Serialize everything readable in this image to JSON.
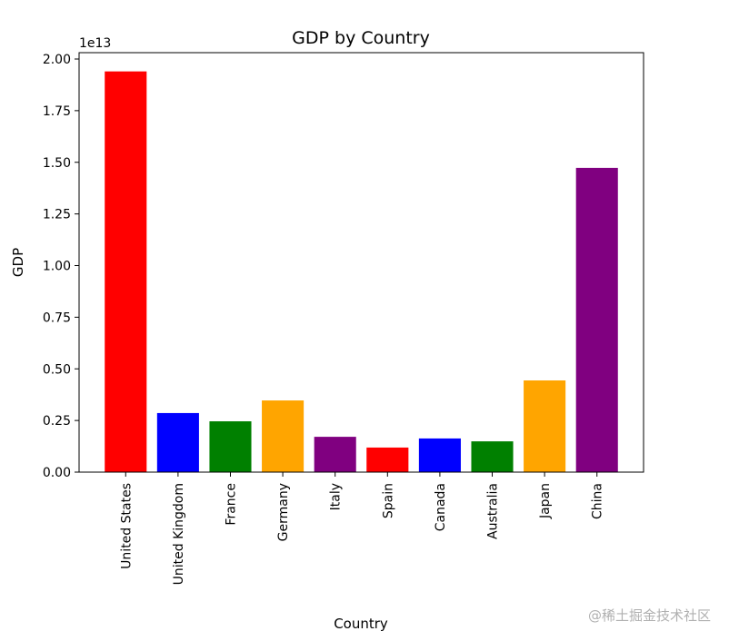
{
  "chart_data": {
    "type": "bar",
    "title": "GDP by Country",
    "xlabel": "Country",
    "ylabel": "GDP",
    "y_offset_label": "1e13",
    "categories": [
      "United States",
      "United Kingdom",
      "France",
      "Germany",
      "Italy",
      "Spain",
      "Canada",
      "Australia",
      "Japan",
      "China"
    ],
    "values": [
      1.94,
      0.286,
      0.246,
      0.347,
      0.171,
      0.119,
      0.163,
      0.149,
      0.444,
      1.473
    ],
    "value_scale": 10000000000000.0,
    "colors": [
      "#ff0000",
      "#0000ff",
      "#008000",
      "#ffa500",
      "#800080",
      "#ff0000",
      "#0000ff",
      "#008000",
      "#ffa500",
      "#800080"
    ],
    "ylim": [
      0,
      2.03
    ],
    "yticks": [
      0,
      0.25,
      0.5,
      0.75,
      1.0,
      1.25,
      1.5,
      1.75,
      2.0
    ],
    "ytick_labels": [
      "0.00",
      "0.25",
      "0.50",
      "0.75",
      "1.00",
      "1.25",
      "1.50",
      "1.75",
      "2.00"
    ],
    "grid": false,
    "legend": "none"
  },
  "watermark": "@稀土掘金技术社区"
}
